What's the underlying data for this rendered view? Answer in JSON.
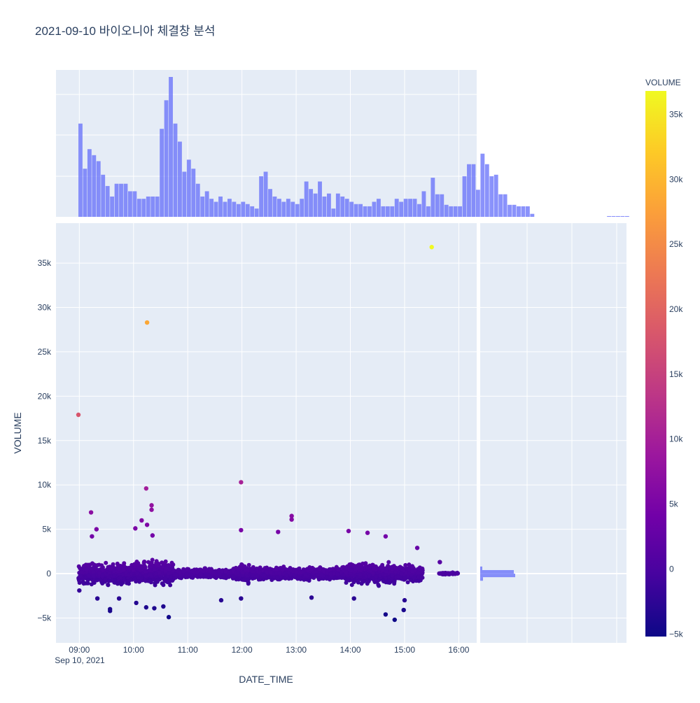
{
  "colors": {
    "plot_bg": "#e5ecf6",
    "grid": "#ffffff",
    "hist_fill": "#636efa",
    "text": "#2a3f5f",
    "colorscale": [
      "#0d0887",
      "#46039f",
      "#7201a8",
      "#9c179e",
      "#bd3786",
      "#d8576b",
      "#ed7953",
      "#fb9f3a",
      "#fdca26",
      "#f0f921"
    ]
  },
  "chart_data": {
    "type": "scatter",
    "title": "2021-09-10 바이오니아 체결창 분석",
    "xlabel": "DATE_TIME",
    "ylabel": "VOLUME",
    "x_date_label": "Sep 10, 2021",
    "x_ticks": [
      "09:00",
      "10:00",
      "11:00",
      "12:00",
      "13:00",
      "14:00",
      "15:00",
      "16:00"
    ],
    "x_range_hours": [
      8.57,
      16.33
    ],
    "y_ticks": [
      -5000,
      0,
      5000,
      10000,
      15000,
      20000,
      25000,
      30000,
      35000
    ],
    "y_tick_labels": [
      "−5k",
      "0",
      "5k",
      "10k",
      "15k",
      "20k",
      "25k",
      "30k",
      "35k"
    ],
    "ylim": [
      -7800,
      39500
    ],
    "colorbar": {
      "title": "VOLUME",
      "range": [
        -5200,
        36800
      ],
      "ticks": [
        -5000,
        0,
        5000,
        10000,
        15000,
        20000,
        25000,
        30000,
        35000
      ],
      "tick_labels": [
        "−5k",
        "0",
        "5k",
        "10k",
        "15k",
        "20k",
        "25k",
        "30k",
        "35k"
      ]
    },
    "outliers": [
      {
        "time": "15:30",
        "volume": 36800
      },
      {
        "time": "10:15",
        "volume": 28300
      },
      {
        "time": "08:59",
        "volume": 17900
      },
      {
        "time": "11:59",
        "volume": 10300
      },
      {
        "time": "10:14",
        "volume": 9600
      },
      {
        "time": "10:20",
        "volume": 7700
      },
      {
        "time": "10:20",
        "volume": 7200
      },
      {
        "time": "09:13",
        "volume": 6900
      },
      {
        "time": "12:55",
        "volume": 6500
      },
      {
        "time": "12:55",
        "volume": 6100
      },
      {
        "time": "10:09",
        "volume": 6000
      },
      {
        "time": "10:15",
        "volume": 5500
      },
      {
        "time": "10:02",
        "volume": 5100
      },
      {
        "time": "09:19",
        "volume": 5000
      },
      {
        "time": "11:59",
        "volume": 4900
      },
      {
        "time": "12:40",
        "volume": 4700
      },
      {
        "time": "13:58",
        "volume": 4800
      },
      {
        "time": "14:19",
        "volume": 4600
      },
      {
        "time": "14:39",
        "volume": 4200
      },
      {
        "time": "09:14",
        "volume": 4200
      },
      {
        "time": "10:21",
        "volume": 4300
      },
      {
        "time": "15:14",
        "volume": 2900
      },
      {
        "time": "15:39",
        "volume": 1300
      },
      {
        "time": "09:00",
        "volume": -1900
      },
      {
        "time": "09:34",
        "volume": -4000
      },
      {
        "time": "09:34",
        "volume": -4200
      },
      {
        "time": "09:20",
        "volume": -2800
      },
      {
        "time": "09:44",
        "volume": -2800
      },
      {
        "time": "10:03",
        "volume": -3300
      },
      {
        "time": "10:14",
        "volume": -3800
      },
      {
        "time": "10:23",
        "volume": -3900
      },
      {
        "time": "10:39",
        "volume": -4900
      },
      {
        "time": "10:33",
        "volume": -3700
      },
      {
        "time": "11:37",
        "volume": -3000
      },
      {
        "time": "11:59",
        "volume": -2800
      },
      {
        "time": "13:17",
        "volume": -2700
      },
      {
        "time": "14:04",
        "volume": -2800
      },
      {
        "time": "14:39",
        "volume": -4600
      },
      {
        "time": "14:49",
        "volume": -5200
      },
      {
        "time": "14:59",
        "volume": -4100
      },
      {
        "time": "15:00",
        "volume": -3000
      }
    ],
    "dense_band_segments": [
      {
        "start": "08:59",
        "end": "10:00",
        "spread": 1500
      },
      {
        "start": "10:00",
        "end": "10:45",
        "spread": 1800
      },
      {
        "start": "10:45",
        "end": "11:50",
        "spread": 700
      },
      {
        "start": "11:50",
        "end": "12:10",
        "spread": 1300
      },
      {
        "start": "12:10",
        "end": "13:55",
        "spread": 900
      },
      {
        "start": "13:55",
        "end": "14:50",
        "spread": 1600
      },
      {
        "start": "14:50",
        "end": "15:20",
        "spread": 1200
      },
      {
        "start": "15:38",
        "end": "15:59",
        "spread": 150
      }
    ],
    "x_histogram": {
      "bin_start": "08:59",
      "bin_minutes": 5,
      "counts": [
        124,
        64,
        90,
        82,
        74,
        56,
        41,
        27,
        44,
        44,
        44,
        34,
        34,
        24,
        24,
        27,
        27,
        27,
        117,
        155,
        186,
        124,
        100,
        60,
        76,
        64,
        44,
        27,
        34,
        24,
        20,
        27,
        20,
        24,
        20,
        17,
        20,
        17,
        14,
        11,
        54,
        60,
        37,
        27,
        24,
        20,
        24,
        20,
        17,
        24,
        47,
        37,
        31,
        47,
        27,
        31,
        11,
        31,
        27,
        24,
        20,
        17,
        17,
        14,
        14,
        20,
        24,
        14,
        14,
        14,
        24,
        20,
        24,
        24,
        24,
        17,
        34,
        14,
        52,
        30,
        30,
        16,
        14,
        14,
        14,
        54,
        70,
        70,
        36,
        84,
        70,
        54,
        56,
        30,
        30,
        16,
        16,
        14,
        14,
        14,
        4,
        0,
        0,
        0,
        0,
        0,
        0,
        0,
        0,
        0,
        0,
        0,
        0,
        0,
        0,
        0,
        0,
        1,
        1,
        1,
        1,
        1
      ]
    },
    "y_histogram_note": "marginal histogram of VOLUME concentrated near 0"
  }
}
